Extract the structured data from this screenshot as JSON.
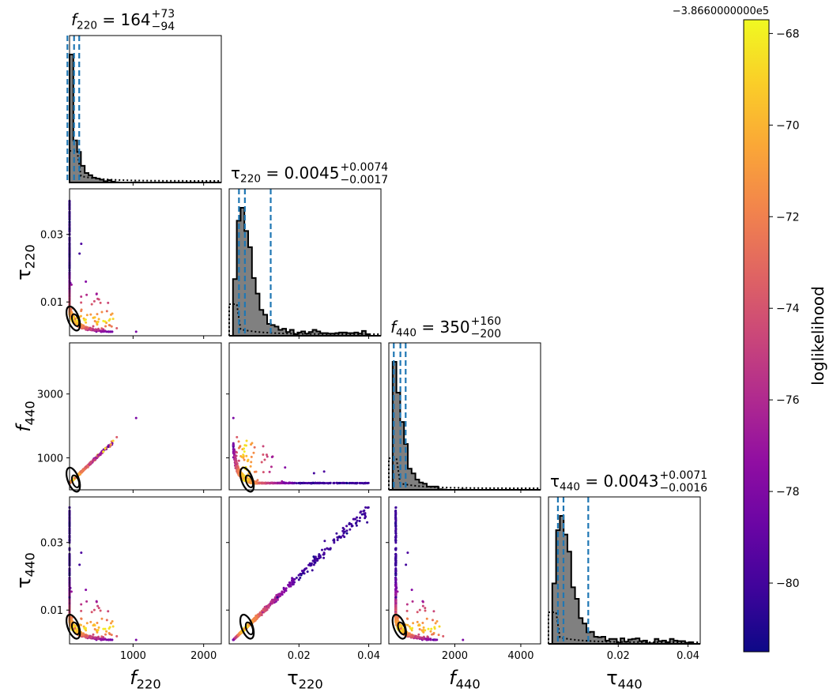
{
  "chart_data": {
    "type": "scatter",
    "layout": "corner-plot",
    "parameters": [
      {
        "symbol": "f",
        "sub": "220",
        "title_value": "164",
        "plus": "73",
        "minus": "94",
        "range": [
          100,
          2250
        ],
        "ticks": [
          1000,
          2000
        ],
        "tick_labels": [
          "1000",
          "2000"
        ]
      },
      {
        "symbol": "τ",
        "sub": "220",
        "title_value": "0.0045",
        "plus": "0.0074",
        "minus": "0.0017",
        "range": [
          0.0,
          0.0435
        ],
        "ticks": [
          0.01,
          0.03
        ],
        "tick_labels": [
          "0.01",
          "0.03"
        ],
        "xticks": [
          0.02,
          0.04
        ],
        "xtick_labels": [
          "0.02",
          "0.04"
        ]
      },
      {
        "symbol": "f",
        "sub": "440",
        "title_value": "350",
        "plus": "160",
        "minus": "200",
        "range": [
          0,
          4600
        ],
        "ticks": [
          1000,
          3000
        ],
        "tick_labels": [
          "1000",
          "3000"
        ],
        "xticks": [
          2000,
          4000
        ],
        "xtick_labels": [
          "2000",
          "4000"
        ]
      },
      {
        "symbol": "τ",
        "sub": "440",
        "title_value": "0.0043",
        "plus": "0.0071",
        "minus": "0.0016",
        "range": [
          0.0,
          0.0435
        ],
        "ticks": [
          0.01,
          0.03
        ],
        "tick_labels": [
          "0.01",
          "0.03"
        ],
        "xticks": [
          0.02,
          0.04
        ],
        "xtick_labels": [
          "0.02",
          "0.04"
        ]
      }
    ],
    "quantile_lines": [
      [
        70,
        164,
        237
      ],
      [
        0.0028,
        0.0045,
        0.0119
      ],
      [
        150,
        350,
        510
      ],
      [
        0.0027,
        0.0043,
        0.0114
      ]
    ],
    "colorbar": {
      "label": "loglikelihood",
      "offset_text": "−3.8660000000e5",
      "range": [
        -81.5,
        -67.7
      ],
      "ticks": [
        -80,
        -78,
        -76,
        -74,
        -72,
        -70,
        -68
      ],
      "tick_labels": [
        "−80",
        "−78",
        "−76",
        "−74",
        "−72",
        "−70",
        "−68"
      ],
      "colormap": "plasma"
    },
    "grid": false,
    "accent_colors": {
      "quantile": "#1f77b4",
      "histogram_fill": "#808080",
      "contour": "#000000"
    }
  }
}
